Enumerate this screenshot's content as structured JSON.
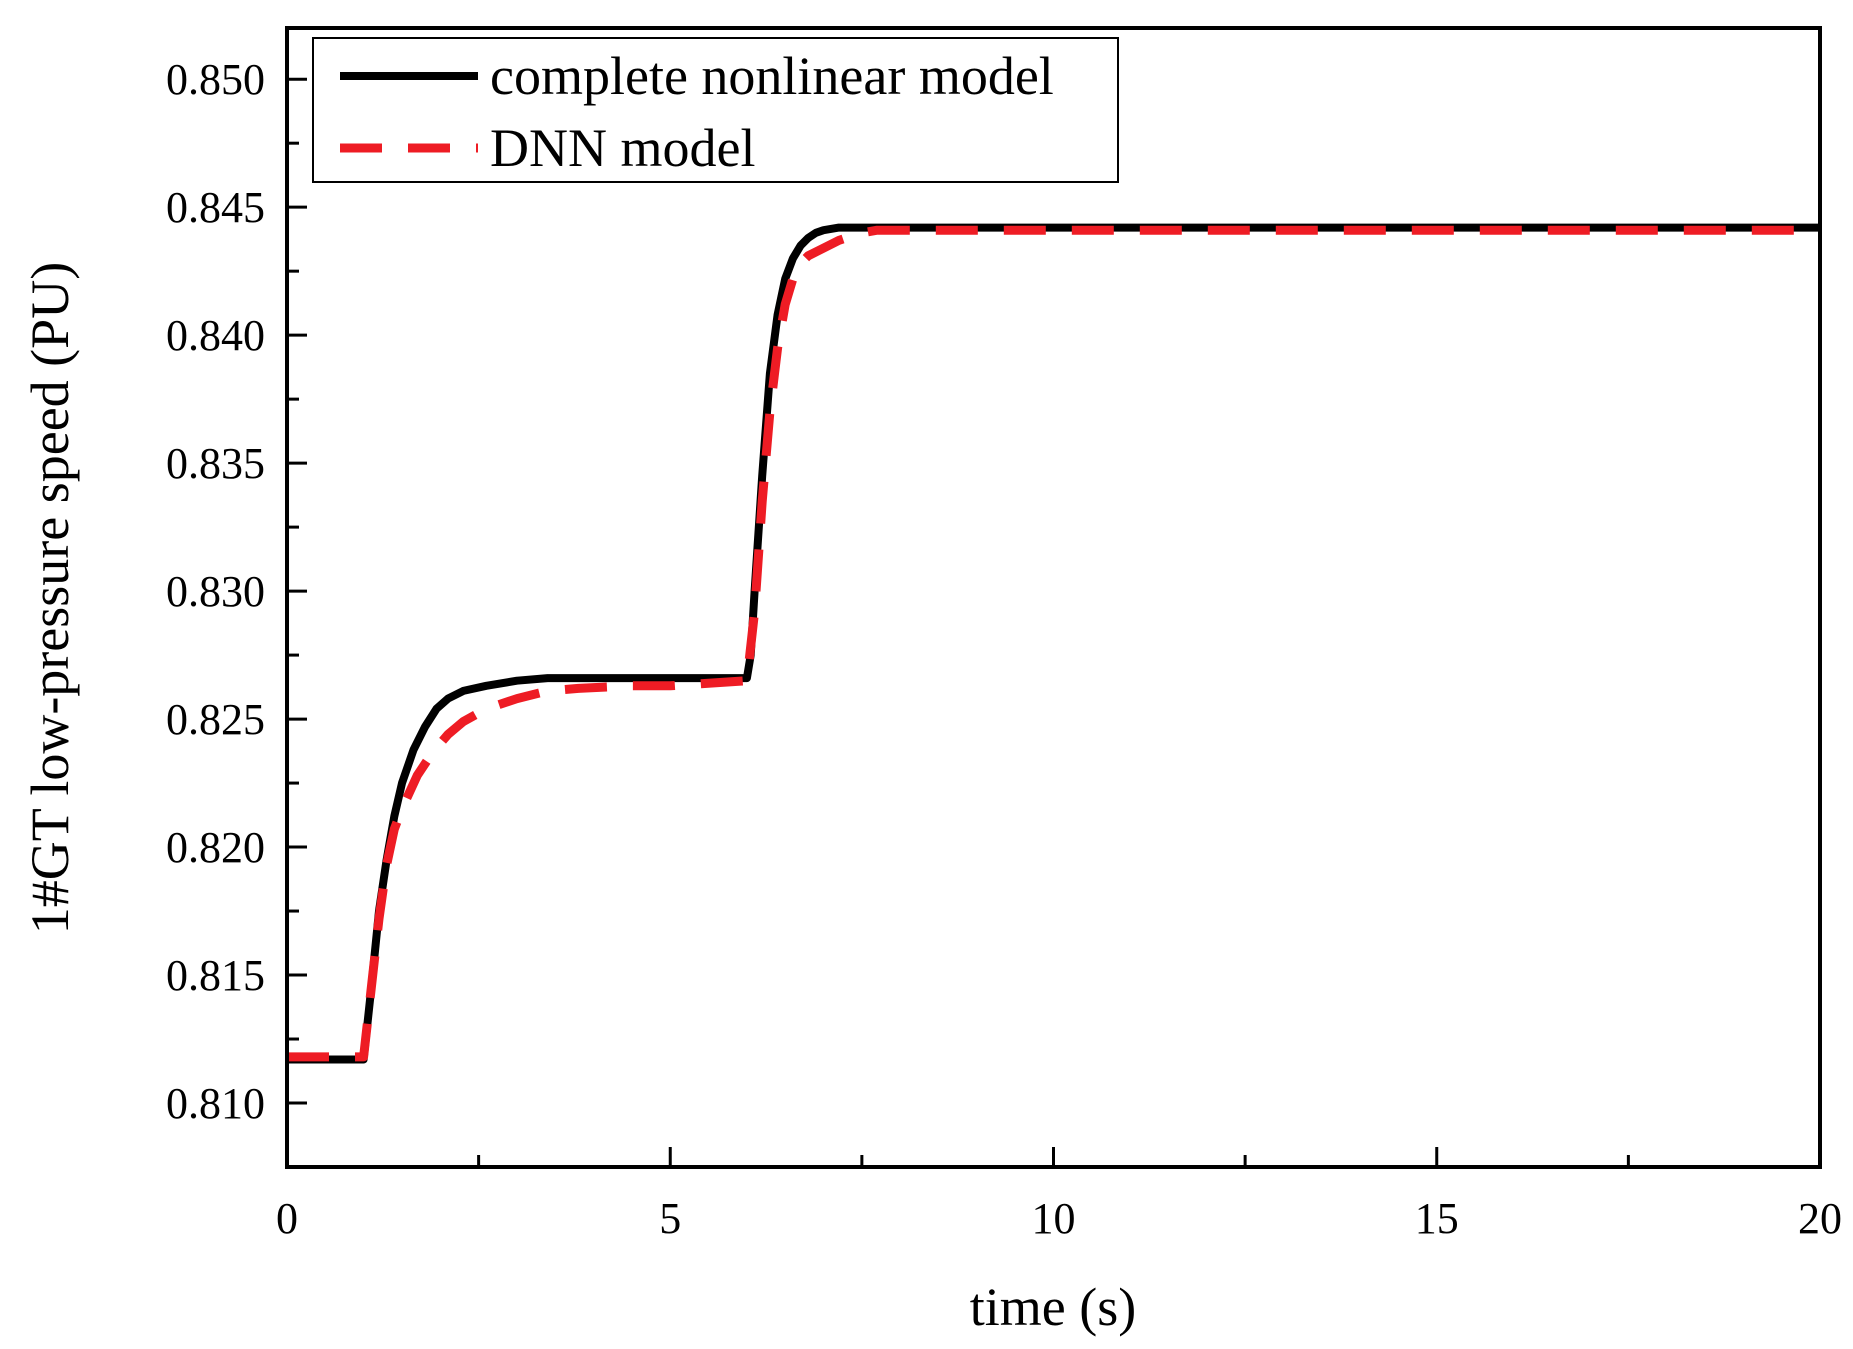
{
  "chart_data": {
    "type": "line",
    "title": "",
    "xlabel": "time (s)",
    "ylabel": "1#GT low-pressure speed (PU)",
    "xlim": [
      0,
      20
    ],
    "ylim": [
      0.8075,
      0.852
    ],
    "x_major_ticks": [
      0,
      5,
      10,
      15,
      20
    ],
    "x_minor_ticks": [
      2.5,
      7.5,
      12.5,
      17.5
    ],
    "x_tick_labels": [
      "0",
      "5",
      "10",
      "15",
      "20"
    ],
    "y_major_ticks": [
      0.81,
      0.815,
      0.82,
      0.825,
      0.83,
      0.835,
      0.84,
      0.845,
      0.85
    ],
    "y_minor_ticks": [
      0.8125,
      0.8175,
      0.8225,
      0.8275,
      0.8325,
      0.8375,
      0.8425,
      0.8475
    ],
    "y_tick_labels": [
      "0.810",
      "0.815",
      "0.820",
      "0.825",
      "0.830",
      "0.835",
      "0.840",
      "0.845",
      "0.850"
    ],
    "grid": false,
    "legend_position": "top-left",
    "series": [
      {
        "name": "complete nonlinear model",
        "color": "#000000",
        "style": "solid",
        "x": [
          0,
          1.0,
          1.1,
          1.2,
          1.3,
          1.4,
          1.5,
          1.65,
          1.8,
          1.95,
          2.1,
          2.3,
          2.6,
          3.0,
          3.4,
          4.0,
          5.0,
          6.0,
          6.05,
          6.1,
          6.2,
          6.3,
          6.4,
          6.5,
          6.6,
          6.7,
          6.8,
          6.9,
          7.0,
          7.2,
          7.5,
          7.8,
          20
        ],
        "y": [
          0.8117,
          0.8117,
          0.8145,
          0.8175,
          0.8195,
          0.8212,
          0.8225,
          0.8238,
          0.8247,
          0.8254,
          0.8258,
          0.8261,
          0.8263,
          0.8265,
          0.8266,
          0.8266,
          0.8266,
          0.8266,
          0.8275,
          0.83,
          0.8345,
          0.8385,
          0.8408,
          0.8422,
          0.843,
          0.8435,
          0.8438,
          0.844,
          0.8441,
          0.8442,
          0.8442,
          0.8442,
          0.8442
        ]
      },
      {
        "name": "DNN model",
        "color": "#ee1c24",
        "style": "dashed",
        "x": [
          0,
          1.0,
          1.1,
          1.2,
          1.3,
          1.4,
          1.5,
          1.7,
          1.9,
          2.1,
          2.3,
          2.6,
          3.0,
          3.4,
          3.8,
          4.5,
          5.0,
          6.0,
          6.1,
          6.2,
          6.3,
          6.4,
          6.5,
          6.6,
          6.7,
          6.8,
          7.0,
          7.2,
          7.5,
          7.7,
          20
        ],
        "y": [
          0.8118,
          0.8118,
          0.8145,
          0.8172,
          0.8193,
          0.8207,
          0.8215,
          0.8228,
          0.8237,
          0.8244,
          0.8249,
          0.8254,
          0.8258,
          0.8261,
          0.8262,
          0.8263,
          0.8263,
          0.8265,
          0.8292,
          0.8335,
          0.837,
          0.8395,
          0.8412,
          0.8422,
          0.8428,
          0.8431,
          0.8434,
          0.8437,
          0.844,
          0.8441,
          0.8441
        ]
      }
    ]
  }
}
